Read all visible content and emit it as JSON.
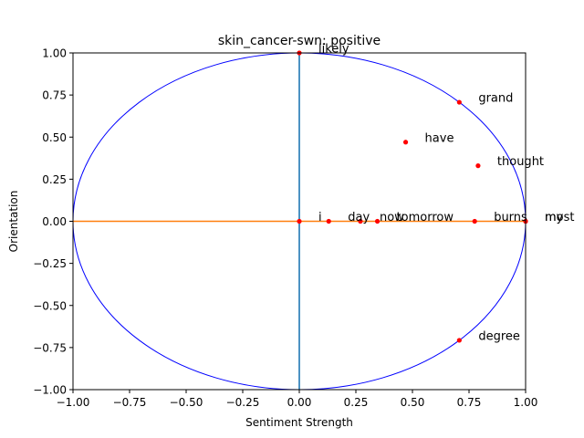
{
  "chart_data": {
    "type": "scatter",
    "title": "skin_cancer-swn: positive",
    "xlabel": "Sentiment Strength",
    "ylabel": "Orientation",
    "xlim": [
      -1.0,
      1.0
    ],
    "ylim": [
      -1.0,
      1.0
    ],
    "x_ticks": [
      "−1.00",
      "−0.75",
      "−0.50",
      "−0.25",
      "0.00",
      "0.25",
      "0.50",
      "0.75",
      "1.00"
    ],
    "y_ticks": [
      "−1.00",
      "−0.75",
      "−0.50",
      "−0.25",
      "0.00",
      "0.25",
      "0.50",
      "0.75",
      "1.00"
    ],
    "grid": false,
    "unit_circle": true,
    "colors": {
      "points": "#ff0000",
      "circle": "#0000ff",
      "vertical_axis_line": "#1f77b4",
      "horizontal_axis_line": "#ff7f0e"
    },
    "points": [
      {
        "label": "likely",
        "x": 0.0,
        "y": 1.0
      },
      {
        "label": "grand",
        "x": 0.707,
        "y": 0.707
      },
      {
        "label": "have",
        "x": 0.47,
        "y": 0.47
      },
      {
        "label": "thought",
        "x": 0.79,
        "y": 0.33
      },
      {
        "label": "i",
        "x": 0.0,
        "y": 0.0
      },
      {
        "label": "day",
        "x": 0.13,
        "y": 0.0
      },
      {
        "label": "now",
        "x": 0.27,
        "y": 0.0
      },
      {
        "label": "tomorrow",
        "x": 0.345,
        "y": 0.0
      },
      {
        "label": "burns",
        "x": 0.775,
        "y": 0.0
      },
      {
        "label": "my",
        "x": 1.0,
        "y": 0.0
      },
      {
        "label": "most",
        "x": 1.0,
        "y": 0.0
      },
      {
        "label": "degree",
        "x": 0.707,
        "y": -0.707
      }
    ]
  }
}
